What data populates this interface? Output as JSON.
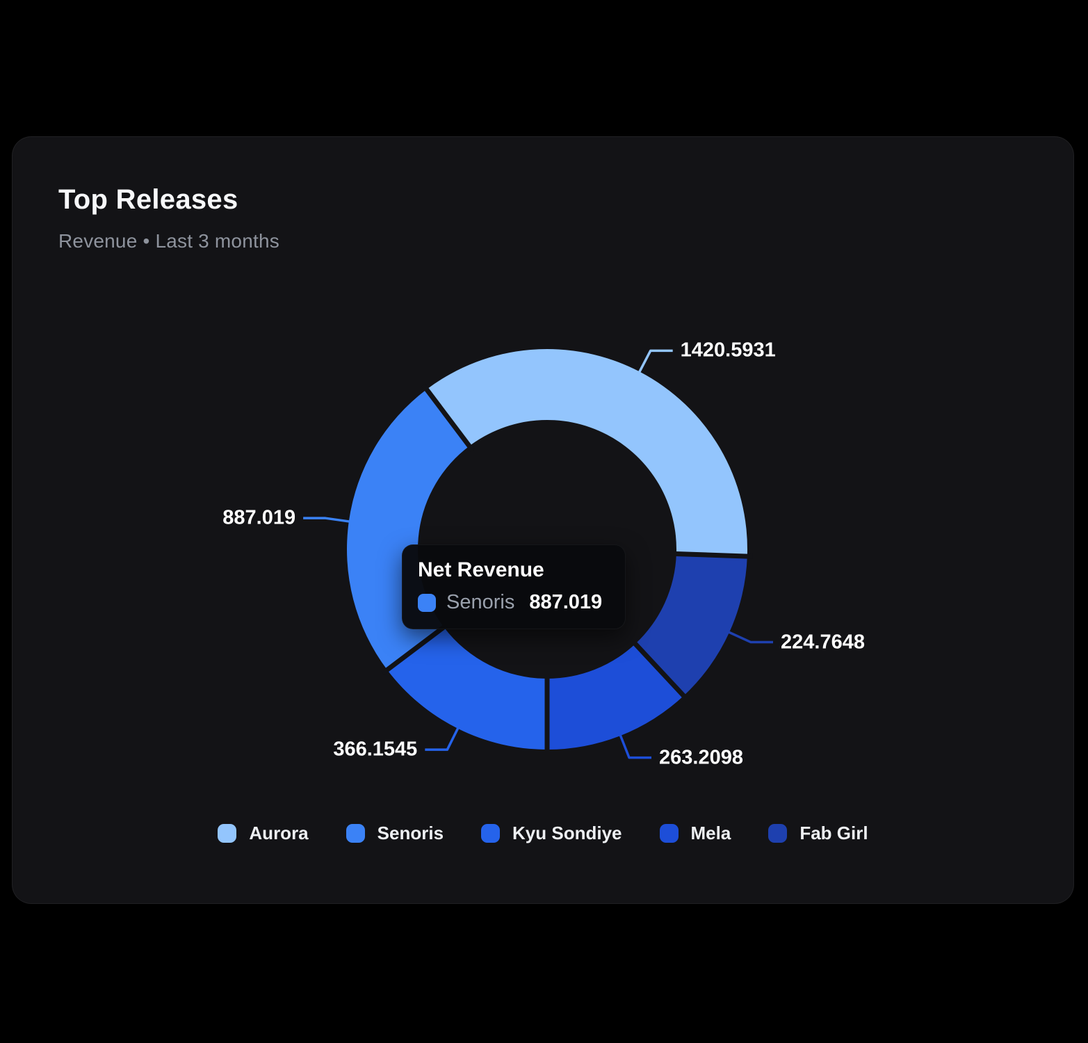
{
  "page": {
    "background": "#000000"
  },
  "card": {
    "title": "Top Releases",
    "subtitle": "Revenue • Last 3 months",
    "background": "#131316"
  },
  "tooltip": {
    "title": "Net Revenue",
    "series_name": "Senoris",
    "value": "887.019",
    "swatch_color": "#3B82F6"
  },
  "chart_data": {
    "type": "pie",
    "donut": true,
    "title": "Top Releases",
    "subtitle": "Revenue • Last 3 months",
    "metric": "Net Revenue",
    "legend_position": "bottom",
    "inner_radius_ratio": 0.645,
    "segments": [
      {
        "name": "Aurora",
        "value": 1420.5931,
        "value_label": "1420.5931",
        "color": "#93C5FD",
        "start_angle": -37,
        "end_angle": 92
      },
      {
        "name": "Fab Girl",
        "value": 224.7648,
        "value_label": "224.7648",
        "color": "#1E40AF",
        "start_angle": 92,
        "end_angle": 137
      },
      {
        "name": "Mela",
        "value": 263.2098,
        "value_label": "263.2098",
        "color": "#1D4ED8",
        "start_angle": 137,
        "end_angle": 180
      },
      {
        "name": "Kyu Sondiye",
        "value": 366.1545,
        "value_label": "366.1545",
        "color": "#2563EB",
        "start_angle": 180,
        "end_angle": 233
      },
      {
        "name": "Senoris",
        "value": 887.019,
        "value_label": "887.019",
        "color": "#3B82F6",
        "start_angle": 233,
        "end_angle": 323
      }
    ]
  },
  "legend": {
    "items": [
      {
        "label": "Aurora",
        "color": "#93C5FD"
      },
      {
        "label": "Senoris",
        "color": "#3B82F6"
      },
      {
        "label": "Kyu Sondiye",
        "color": "#2563EB"
      },
      {
        "label": "Mela",
        "color": "#1D4ED8"
      },
      {
        "label": "Fab Girl",
        "color": "#1E40AF"
      }
    ]
  }
}
